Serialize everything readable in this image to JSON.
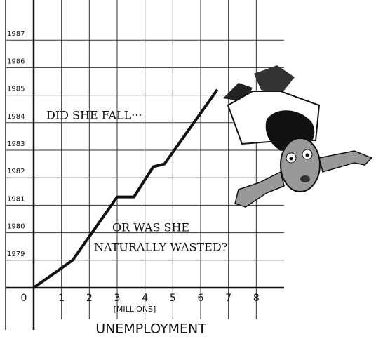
{
  "chart_data": {
    "type": "line",
    "x_label": "UNEMPLOYMENT",
    "x_unit": "[MILLIONS]",
    "annotations": [
      "DID SHE FALL···",
      "OR WAS SHE",
      "NATURALLY WASTED?"
    ],
    "x": [
      0,
      1.4,
      3,
      3.6,
      4.3,
      4.7,
      6.6
    ],
    "series": [
      {
        "color": "#111111",
        "values": [
          1978,
          1979,
          1981.3,
          1981.3,
          1982.4,
          1982.5,
          1985.2
        ]
      }
    ],
    "xlim": [
      0,
      9
    ],
    "xticks": [
      0,
      1,
      2,
      3,
      4,
      5,
      6,
      7,
      8
    ],
    "ylim": [
      1978,
      1988
    ],
    "yticks": [
      1979,
      1980,
      1981,
      1982,
      1983,
      1984,
      1985,
      1986,
      1987
    ],
    "grid": true
  }
}
